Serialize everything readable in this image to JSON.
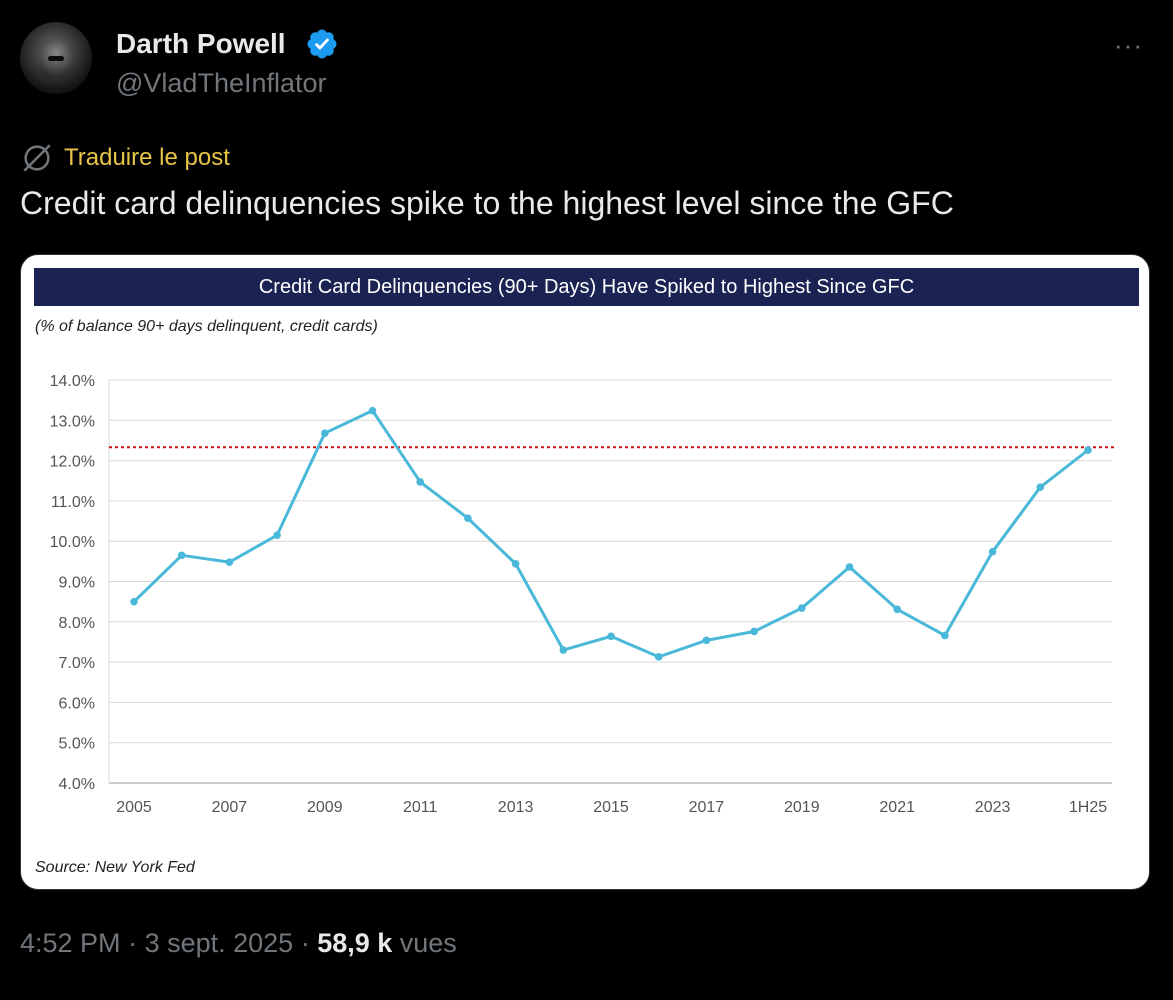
{
  "author": {
    "name": "Darth Powell",
    "handle": "@VladTheInflator",
    "verified_icon": "verified-badge-icon",
    "more_label": "···"
  },
  "post": {
    "translate_label": "Traduire le post",
    "text": "Credit card delinquencies spike to the highest level since the GFC"
  },
  "meta": {
    "time": "4:52 PM",
    "sep1": " · ",
    "date": "3 sept. 2025",
    "sep2": " · ",
    "views": "58,9 k",
    "views_label": " vues"
  },
  "colors": {
    "accent_translate": "#e8c547",
    "line": "#4ab8d8",
    "reference": "#cc1111",
    "header": "#1a2352"
  },
  "chart_data": {
    "type": "line",
    "title": "Credit Card Delinquencies (90+ Days) Have Spiked to Highest Since GFC",
    "subtitle": "(% of balance 90+ days delinquent, credit cards)",
    "source": "Source: New York Fed",
    "ylim": [
      4,
      14
    ],
    "y_ticks": [
      "4.0%",
      "5.0%",
      "6.0%",
      "7.0%",
      "8.0%",
      "9.0%",
      "10.0%",
      "11.0%",
      "12.0%",
      "13.0%",
      "14.0%"
    ],
    "x_labels": [
      "2005",
      "2007",
      "2009",
      "2011",
      "2013",
      "2015",
      "2017",
      "2019",
      "2021",
      "2023",
      "1H25"
    ],
    "x": [
      "2005",
      "2006",
      "2007",
      "2008",
      "2009",
      "2010",
      "2011",
      "2012",
      "2013",
      "2014",
      "2015",
      "2016",
      "2017",
      "2018",
      "2019",
      "2020",
      "2021",
      "2022",
      "2023",
      "2024",
      "1H25"
    ],
    "values": [
      8.5,
      9.65,
      9.48,
      10.15,
      12.68,
      13.24,
      11.47,
      10.57,
      9.44,
      7.3,
      7.64,
      7.13,
      7.54,
      7.76,
      8.34,
      9.36,
      8.31,
      7.66,
      9.74,
      11.34,
      12.26
    ],
    "reference_line": 12.33,
    "grid": true
  }
}
